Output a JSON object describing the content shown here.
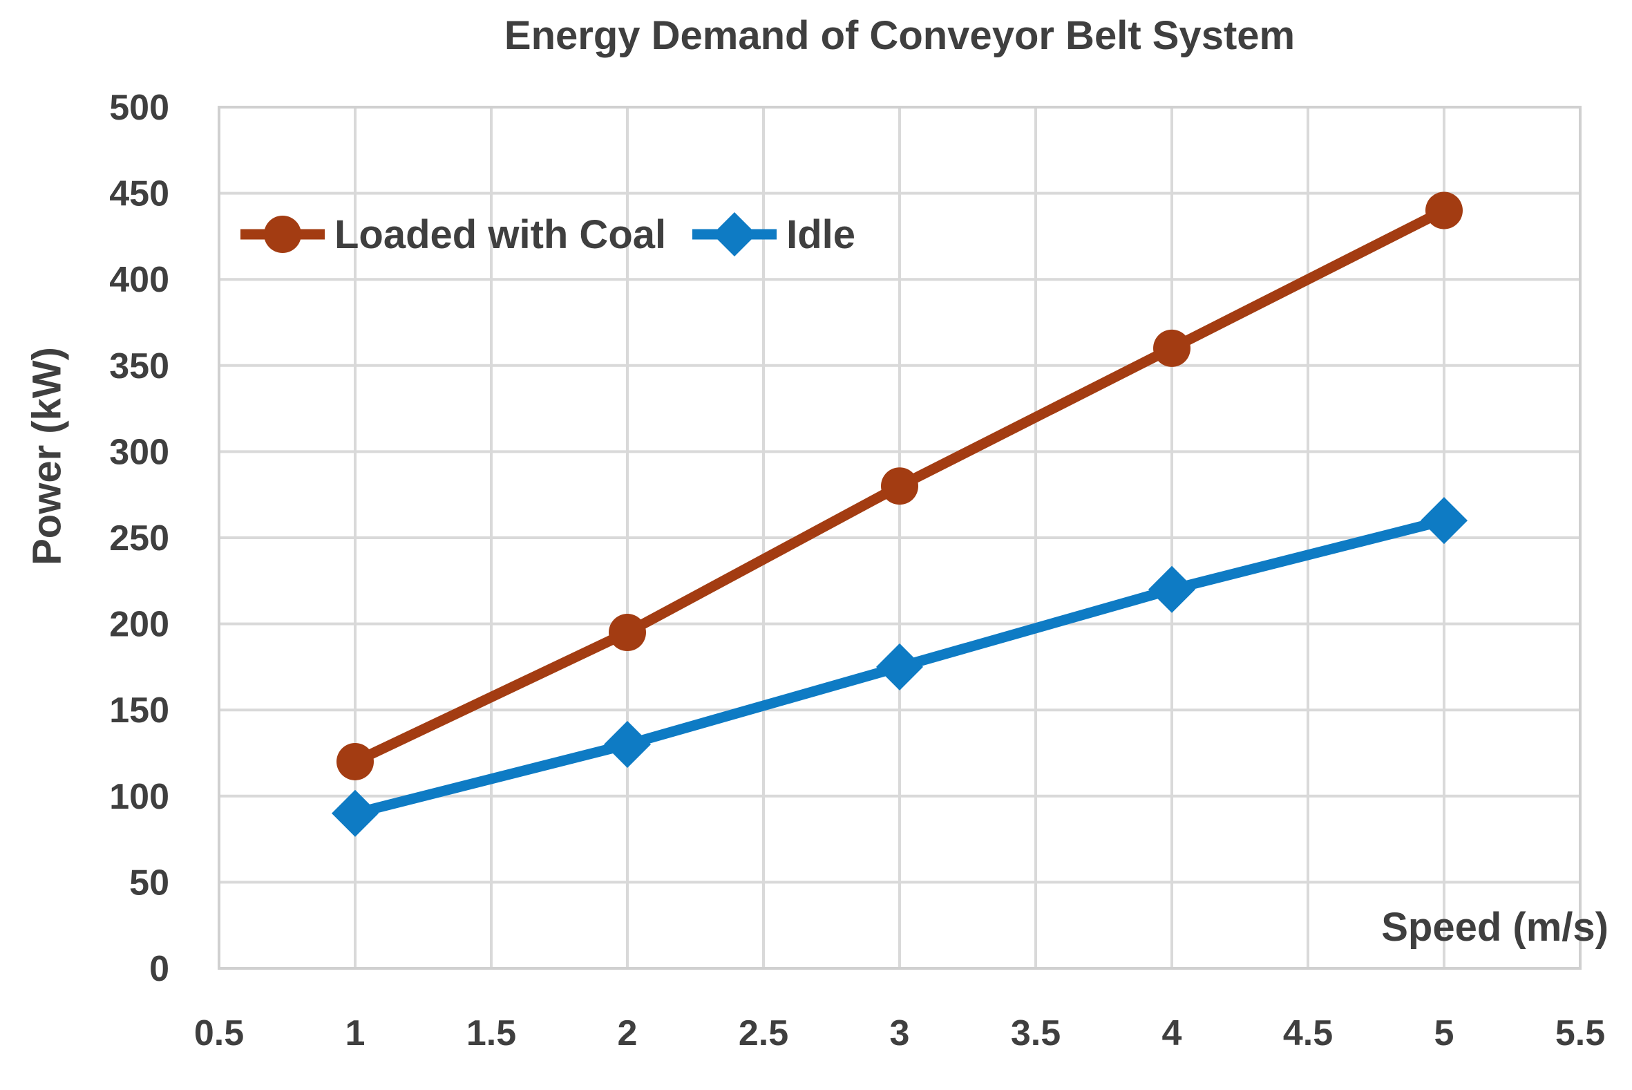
{
  "chart_data": {
    "type": "line",
    "title": "Energy Demand of Conveyor Belt System",
    "xlabel": "Speed (m/s)",
    "ylabel": "Power (kW)",
    "x": [
      1,
      2,
      3,
      4,
      5
    ],
    "series": [
      {
        "name": "Loaded with Coal",
        "marker": "circle",
        "color": "#A33C12",
        "values": [
          120,
          195,
          280,
          360,
          440
        ]
      },
      {
        "name": "Idle",
        "marker": "diamond",
        "color": "#0E7BC4",
        "values": [
          90,
          130,
          175,
          220,
          260
        ]
      }
    ],
    "x_axis": {
      "min": 0.5,
      "max": 5.5,
      "step": 0.5,
      "ticks": [
        "0.5",
        "1",
        "1.5",
        "2",
        "2.5",
        "3",
        "3.5",
        "4",
        "4.5",
        "5",
        "5.5"
      ]
    },
    "y_axis": {
      "min": 0,
      "max": 500,
      "step": 50,
      "ticks_top_to_bottom": [
        "500",
        "450",
        "400",
        "350",
        "300",
        "250",
        "200",
        "150",
        "100",
        "50",
        "0"
      ]
    },
    "grid": {
      "on": true,
      "color": "#D9D9D9",
      "border_color": "#D0D0D0"
    },
    "legend": {
      "position": "inside-top-left"
    },
    "text_color": "#3F3F3F",
    "background": "#FFFFFF"
  }
}
